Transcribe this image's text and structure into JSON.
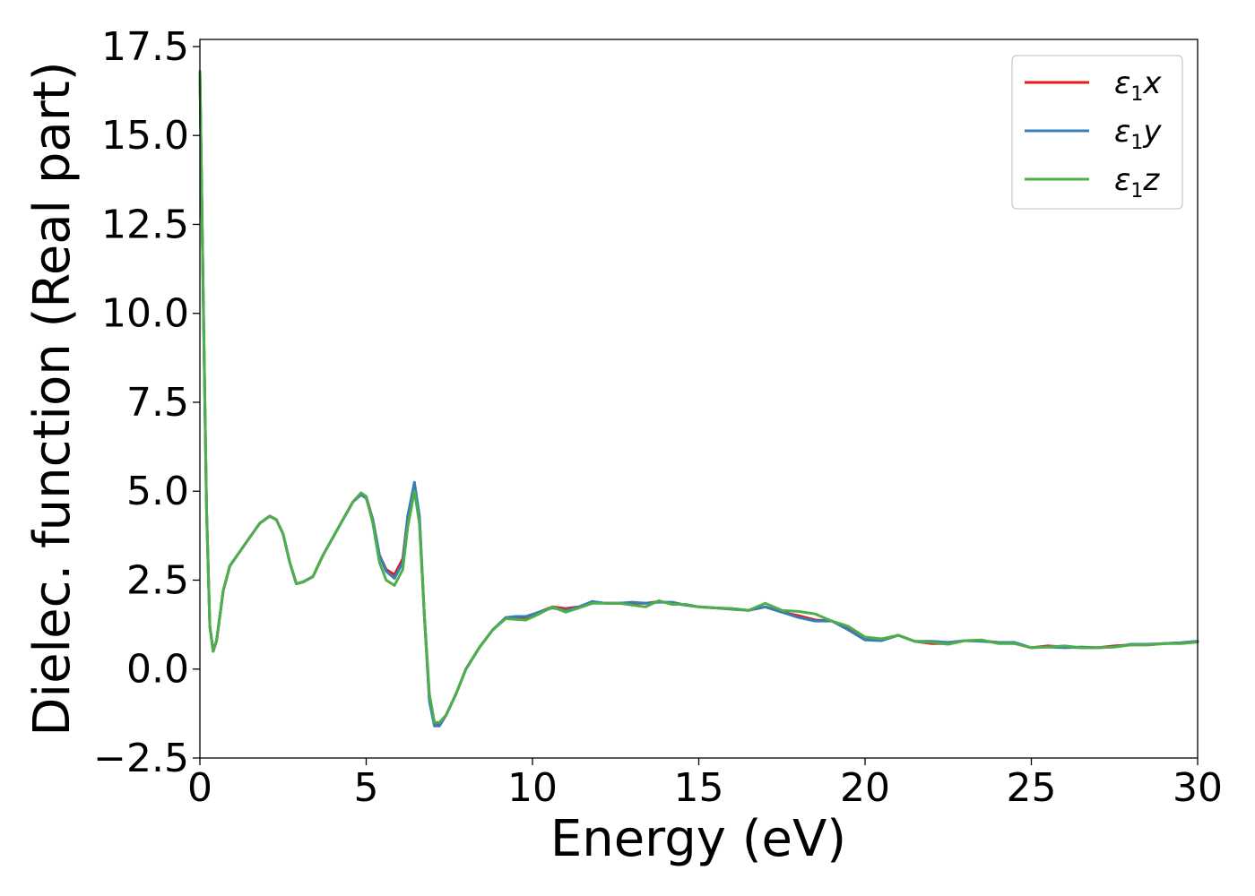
{
  "chart_data": {
    "type": "line",
    "title": "",
    "xlabel": "Energy (eV)",
    "ylabel": "Dielec. function (Real part)",
    "xlim": [
      0,
      30
    ],
    "ylim": [
      -2.5,
      17.7
    ],
    "xticks": [
      0,
      5,
      10,
      15,
      20,
      25,
      30
    ],
    "xtick_labels": [
      "0",
      "5",
      "10",
      "15",
      "20",
      "25",
      "30"
    ],
    "yticks": [
      -2.5,
      0.0,
      2.5,
      5.0,
      7.5,
      10.0,
      12.5,
      15.0,
      17.5
    ],
    "ytick_labels": [
      "−2.5",
      "0.0",
      "2.5",
      "5.0",
      "7.5",
      "10.0",
      "12.5",
      "15.0",
      "17.5"
    ],
    "grid": false,
    "legend_position": "top-right",
    "series": [
      {
        "name": "ε_1x",
        "legend_symbol": "ε",
        "legend_sub": "1",
        "legend_var": "x",
        "color": "#e41a1c",
        "x": [
          0,
          0.1,
          0.2,
          0.3,
          0.4,
          0.5,
          0.7,
          0.9,
          1.2,
          1.5,
          1.8,
          2.1,
          2.3,
          2.5,
          2.7,
          2.9,
          3.1,
          3.4,
          3.7,
          4.0,
          4.3,
          4.6,
          4.85,
          5.0,
          5.2,
          5.4,
          5.6,
          5.85,
          6.1,
          6.25,
          6.45,
          6.6,
          6.75,
          6.9,
          7.05,
          7.2,
          7.4,
          7.7,
          8.0,
          8.4,
          8.8,
          9.2,
          9.5,
          9.8,
          10.2,
          10.6,
          11.0,
          11.4,
          11.8,
          12.2,
          12.6,
          13.0,
          13.4,
          13.8,
          14.2,
          14.6,
          15.0,
          15.5,
          16.0,
          16.5,
          17.0,
          17.5,
          18.0,
          18.5,
          19.0,
          19.5,
          20.0,
          20.5,
          21.0,
          21.5,
          22.0,
          22.5,
          23.0,
          23.5,
          24.0,
          24.5,
          25.0,
          25.5,
          26.0,
          26.5,
          27.0,
          27.5,
          28.0,
          28.5,
          29.0,
          29.5,
          30.0
        ],
        "y": [
          16.8,
          10.5,
          4.5,
          1.2,
          0.5,
          0.8,
          2.2,
          2.9,
          3.3,
          3.7,
          4.1,
          4.3,
          4.2,
          3.8,
          3.0,
          2.4,
          2.45,
          2.6,
          3.2,
          3.7,
          4.2,
          4.7,
          4.95,
          4.85,
          4.2,
          3.2,
          2.8,
          2.65,
          3.1,
          4.3,
          5.2,
          4.2,
          1.5,
          -0.8,
          -1.5,
          -1.55,
          -1.3,
          -0.7,
          0.0,
          0.6,
          1.1,
          1.45,
          1.45,
          1.45,
          1.6,
          1.75,
          1.7,
          1.75,
          1.88,
          1.85,
          1.85,
          1.85,
          1.85,
          1.9,
          1.85,
          1.8,
          1.75,
          1.72,
          1.7,
          1.65,
          1.75,
          1.6,
          1.5,
          1.38,
          1.35,
          1.15,
          0.85,
          0.82,
          0.95,
          0.78,
          0.72,
          0.72,
          0.8,
          0.8,
          0.75,
          0.72,
          0.6,
          0.65,
          0.62,
          0.6,
          0.6,
          0.65,
          0.68,
          0.68,
          0.72,
          0.74,
          0.78
        ]
      },
      {
        "name": "ε_1y",
        "legend_symbol": "ε",
        "legend_sub": "1",
        "legend_var": "y",
        "color": "#377eb8",
        "x": [
          0,
          0.1,
          0.2,
          0.3,
          0.4,
          0.5,
          0.7,
          0.9,
          1.2,
          1.5,
          1.8,
          2.1,
          2.3,
          2.5,
          2.7,
          2.9,
          3.1,
          3.4,
          3.7,
          4.0,
          4.3,
          4.6,
          4.85,
          5.0,
          5.2,
          5.4,
          5.6,
          5.85,
          6.1,
          6.25,
          6.45,
          6.6,
          6.75,
          6.9,
          7.05,
          7.2,
          7.4,
          7.7,
          8.0,
          8.4,
          8.8,
          9.2,
          9.5,
          9.8,
          10.2,
          10.6,
          11.0,
          11.4,
          11.8,
          12.2,
          12.6,
          13.0,
          13.4,
          13.8,
          14.2,
          14.6,
          15.0,
          15.5,
          16.0,
          16.5,
          17.0,
          17.5,
          18.0,
          18.5,
          19.0,
          19.5,
          20.0,
          20.5,
          21.0,
          21.5,
          22.0,
          22.5,
          23.0,
          23.5,
          24.0,
          24.5,
          25.0,
          25.5,
          26.0,
          26.5,
          27.0,
          27.5,
          28.0,
          28.5,
          29.0,
          29.5,
          30.0
        ],
        "y": [
          16.8,
          10.5,
          4.5,
          1.2,
          0.5,
          0.8,
          2.2,
          2.9,
          3.3,
          3.7,
          4.1,
          4.3,
          4.2,
          3.8,
          3.0,
          2.4,
          2.45,
          2.6,
          3.2,
          3.7,
          4.2,
          4.7,
          4.9,
          4.8,
          4.2,
          3.2,
          2.75,
          2.55,
          3.0,
          4.3,
          5.25,
          4.3,
          1.5,
          -0.9,
          -1.6,
          -1.6,
          -1.3,
          -0.7,
          0.0,
          0.6,
          1.1,
          1.45,
          1.48,
          1.48,
          1.6,
          1.72,
          1.65,
          1.75,
          1.9,
          1.85,
          1.85,
          1.88,
          1.85,
          1.88,
          1.88,
          1.8,
          1.75,
          1.72,
          1.68,
          1.65,
          1.75,
          1.6,
          1.45,
          1.35,
          1.35,
          1.1,
          0.82,
          0.8,
          0.95,
          0.78,
          0.78,
          0.75,
          0.8,
          0.78,
          0.75,
          0.75,
          0.6,
          0.62,
          0.6,
          0.62,
          0.6,
          0.62,
          0.7,
          0.7,
          0.72,
          0.74,
          0.78
        ]
      },
      {
        "name": "ε_1z",
        "legend_symbol": "ε",
        "legend_sub": "1",
        "legend_var": "z",
        "color": "#4daf4a",
        "x": [
          0,
          0.1,
          0.2,
          0.3,
          0.4,
          0.5,
          0.7,
          0.9,
          1.2,
          1.5,
          1.8,
          2.1,
          2.3,
          2.5,
          2.7,
          2.9,
          3.1,
          3.4,
          3.7,
          4.0,
          4.3,
          4.6,
          4.85,
          5.0,
          5.2,
          5.4,
          5.6,
          5.85,
          6.1,
          6.25,
          6.45,
          6.6,
          6.75,
          6.9,
          7.05,
          7.2,
          7.4,
          7.7,
          8.0,
          8.4,
          8.8,
          9.2,
          9.5,
          9.8,
          10.2,
          10.6,
          11.0,
          11.4,
          11.8,
          12.2,
          12.6,
          13.0,
          13.4,
          13.8,
          14.2,
          14.6,
          15.0,
          15.5,
          16.0,
          16.5,
          17.0,
          17.5,
          18.0,
          18.5,
          19.0,
          19.5,
          20.0,
          20.5,
          21.0,
          21.5,
          22.0,
          22.5,
          23.0,
          23.5,
          24.0,
          24.5,
          25.0,
          25.5,
          26.0,
          26.5,
          27.0,
          27.5,
          28.0,
          28.5,
          29.0,
          29.5,
          30.0
        ],
        "y": [
          16.8,
          10.5,
          4.5,
          1.2,
          0.5,
          0.8,
          2.2,
          2.9,
          3.3,
          3.7,
          4.1,
          4.3,
          4.2,
          3.8,
          3.0,
          2.4,
          2.45,
          2.6,
          3.2,
          3.7,
          4.2,
          4.7,
          4.95,
          4.85,
          4.1,
          3.0,
          2.5,
          2.35,
          2.8,
          4.0,
          5.0,
          4.1,
          1.5,
          -0.7,
          -1.5,
          -1.5,
          -1.3,
          -0.7,
          0.0,
          0.6,
          1.1,
          1.42,
          1.4,
          1.38,
          1.55,
          1.75,
          1.6,
          1.72,
          1.85,
          1.85,
          1.85,
          1.8,
          1.75,
          1.92,
          1.82,
          1.82,
          1.75,
          1.72,
          1.7,
          1.65,
          1.85,
          1.65,
          1.62,
          1.55,
          1.35,
          1.2,
          0.9,
          0.85,
          0.95,
          0.78,
          0.75,
          0.7,
          0.8,
          0.82,
          0.72,
          0.72,
          0.6,
          0.62,
          0.65,
          0.6,
          0.6,
          0.62,
          0.68,
          0.68,
          0.72,
          0.72,
          0.76
        ]
      }
    ]
  }
}
